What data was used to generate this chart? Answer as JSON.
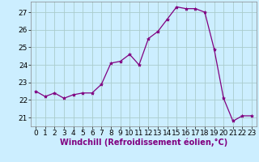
{
  "x": [
    0,
    1,
    2,
    3,
    4,
    5,
    6,
    7,
    8,
    9,
    10,
    11,
    12,
    13,
    14,
    15,
    16,
    17,
    18,
    19,
    20,
    21,
    22,
    23
  ],
  "y": [
    22.5,
    22.2,
    22.4,
    22.1,
    22.3,
    22.4,
    22.4,
    22.9,
    24.1,
    24.2,
    24.6,
    24.0,
    25.5,
    25.9,
    26.6,
    27.3,
    27.2,
    27.2,
    27.0,
    24.9,
    22.1,
    20.8,
    21.1,
    21.1
  ],
  "line_color": "#800080",
  "marker": "*",
  "marker_size": 3,
  "bg_color": "#cceeff",
  "grid_color": "#aacccc",
  "xlabel": "Windchill (Refroidissement éolien,°C)",
  "xlabel_fontsize": 7,
  "tick_fontsize": 6.5,
  "ylim": [
    20.5,
    27.6
  ],
  "yticks": [
    21,
    22,
    23,
    24,
    25,
    26,
    27
  ],
  "xlim": [
    -0.5,
    23.5
  ],
  "xticks": [
    0,
    1,
    2,
    3,
    4,
    5,
    6,
    7,
    8,
    9,
    10,
    11,
    12,
    13,
    14,
    15,
    16,
    17,
    18,
    19,
    20,
    21,
    22,
    23
  ]
}
